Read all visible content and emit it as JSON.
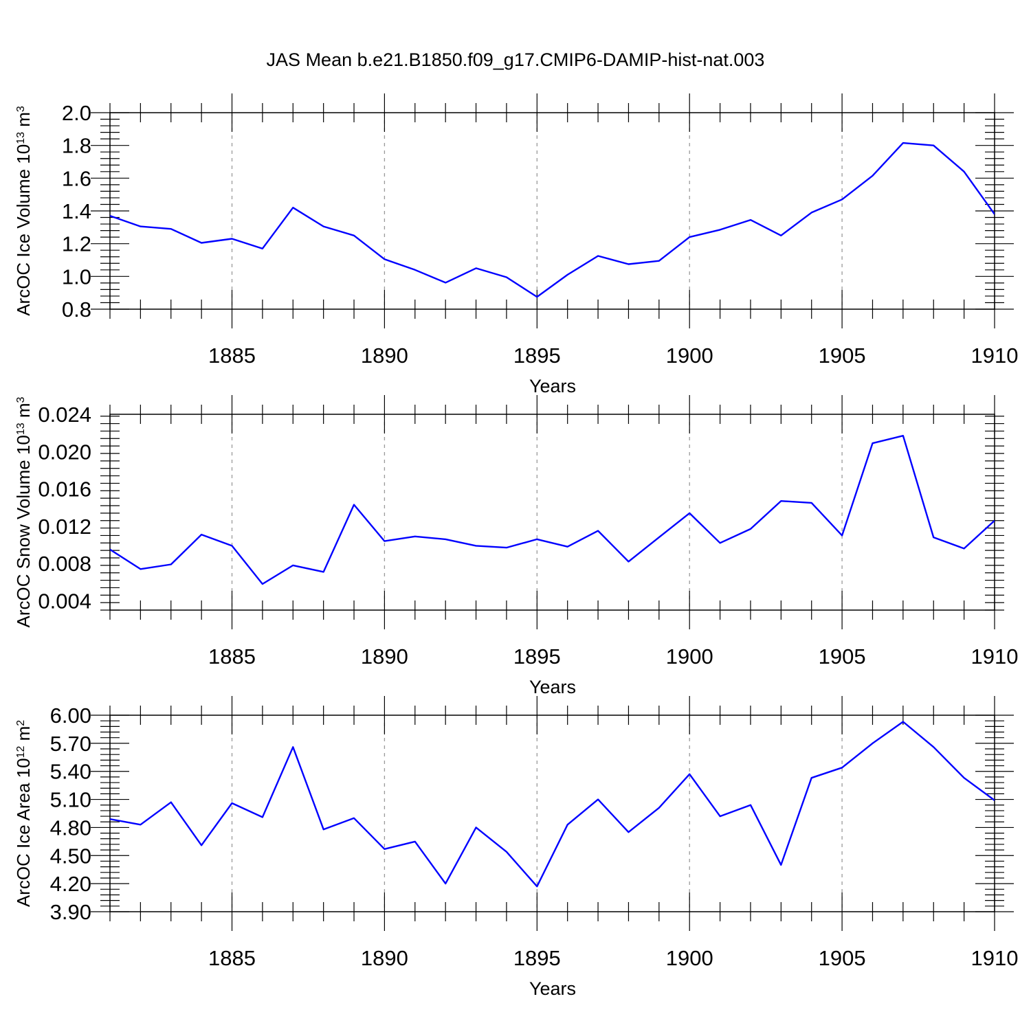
{
  "title": "JAS Mean b.e21.B1850.f09_g17.CMIP6-DAMIP-hist-nat.003",
  "colors": {
    "line": "#0000ff",
    "axis": "#000000",
    "grid": "#999999"
  },
  "chart_data": [
    {
      "type": "line",
      "xlabel": "Years",
      "ylabel": "ArcOC Ice Volume 10",
      "ylabel_exponent": "13",
      "ylabel_unit": " m",
      "ylabel_unit_exponent": "3",
      "xlim": [
        1881,
        1910
      ],
      "ylim": [
        0.8,
        2.0
      ],
      "yticks": [
        "0.8",
        "1.0",
        "1.2",
        "1.4",
        "1.6",
        "1.8",
        "2.0"
      ],
      "xticks": [
        "1885",
        "1890",
        "1895",
        "1900",
        "1905",
        "1910"
      ],
      "x": [
        1881,
        1882,
        1883,
        1884,
        1885,
        1886,
        1887,
        1888,
        1889,
        1890,
        1891,
        1892,
        1893,
        1894,
        1895,
        1896,
        1897,
        1898,
        1899,
        1900,
        1901,
        1902,
        1903,
        1904,
        1905,
        1906,
        1907,
        1908,
        1909,
        1910
      ],
      "series": [
        {
          "name": "ice volume",
          "values": [
            1.37,
            1.305,
            1.29,
            1.205,
            1.23,
            1.17,
            1.42,
            1.305,
            1.25,
            1.105,
            1.04,
            0.962,
            1.05,
            0.995,
            0.875,
            1.01,
            1.125,
            1.075,
            1.095,
            1.24,
            1.285,
            1.345,
            1.25,
            1.39,
            1.47,
            1.615,
            1.815,
            1.8,
            1.64,
            1.38
          ]
        }
      ]
    },
    {
      "type": "line",
      "xlabel": "Years",
      "ylabel": "ArcOC Snow Volume 10",
      "ylabel_exponent": "13",
      "ylabel_unit": " m",
      "ylabel_unit_exponent": "3",
      "xlim": [
        1881,
        1910
      ],
      "ylim": [
        0.003,
        0.024
      ],
      "yticks": [
        "0.004",
        "0.008",
        "0.012",
        "0.016",
        "0.020",
        "0.024"
      ],
      "xticks": [
        "1885",
        "1890",
        "1895",
        "1900",
        "1905",
        "1910"
      ],
      "x": [
        1881,
        1882,
        1883,
        1884,
        1885,
        1886,
        1887,
        1888,
        1889,
        1890,
        1891,
        1892,
        1893,
        1894,
        1895,
        1896,
        1897,
        1898,
        1899,
        1900,
        1901,
        1902,
        1903,
        1904,
        1905,
        1906,
        1907,
        1908,
        1909,
        1910
      ],
      "series": [
        {
          "name": "snow volume",
          "values": [
            0.0095,
            0.0074,
            0.0079,
            0.0111,
            0.0099,
            0.0058,
            0.0078,
            0.0071,
            0.0143,
            0.0104,
            0.0109,
            0.0106,
            0.0099,
            0.0097,
            0.0106,
            0.0098,
            0.0115,
            0.0082,
            0.0108,
            0.0134,
            0.0102,
            0.0117,
            0.0147,
            0.0145,
            0.011,
            0.0209,
            0.0217,
            0.0108,
            0.0096,
            0.0126
          ]
        }
      ]
    },
    {
      "type": "line",
      "xlabel": "Years",
      "ylabel": "ArcOC Ice Area 10",
      "ylabel_exponent": "12",
      "ylabel_unit": " m",
      "ylabel_unit_exponent": "2",
      "xlim": [
        1881,
        1910
      ],
      "ylim": [
        3.9,
        6.0
      ],
      "yticks": [
        "3.90",
        "4.20",
        "4.50",
        "4.80",
        "5.10",
        "5.40",
        "5.70",
        "6.00"
      ],
      "xticks": [
        "1885",
        "1890",
        "1895",
        "1900",
        "1905",
        "1910"
      ],
      "x": [
        1881,
        1882,
        1883,
        1884,
        1885,
        1886,
        1887,
        1888,
        1889,
        1890,
        1891,
        1892,
        1893,
        1894,
        1895,
        1896,
        1897,
        1898,
        1899,
        1900,
        1901,
        1902,
        1903,
        1904,
        1905,
        1906,
        1907,
        1908,
        1909,
        1910
      ],
      "series": [
        {
          "name": "ice area",
          "values": [
            4.89,
            4.83,
            5.07,
            4.61,
            5.06,
            4.91,
            5.66,
            4.78,
            4.9,
            4.57,
            4.65,
            4.2,
            4.8,
            4.54,
            4.17,
            4.83,
            5.1,
            4.75,
            5.01,
            5.37,
            4.92,
            5.04,
            4.4,
            5.33,
            5.44,
            5.7,
            5.93,
            5.66,
            5.33,
            5.09
          ]
        }
      ]
    }
  ]
}
